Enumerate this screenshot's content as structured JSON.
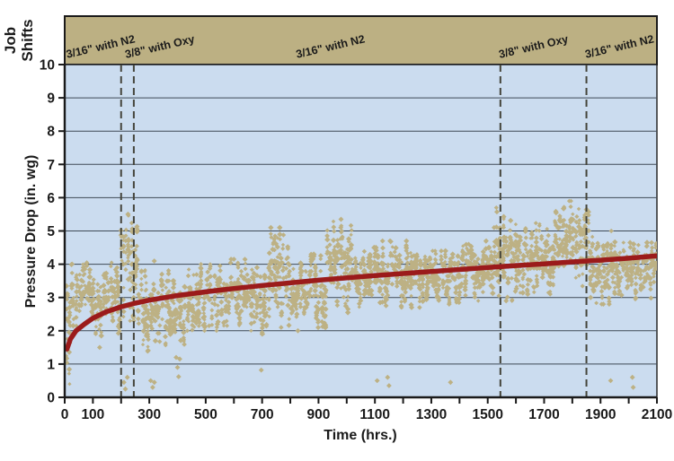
{
  "figure": {
    "band_title": "Job Shifts",
    "xlabel": "Time (hrs.)",
    "ylabel": "Pressure Drop (in. wg)"
  },
  "colors": {
    "background": "#FFFFFF",
    "band_fill": "#BCB083",
    "plot_fill": "#CBDCEF",
    "scatter": "#BDB184",
    "trend": "#9B1B1B",
    "grid": "#3F4A56",
    "axis": "#1A1A1A",
    "dashed_line": "#45453B",
    "text": "#1A1A1A"
  },
  "chart_data": {
    "type": "scatter",
    "title": "",
    "xlabel": "Time (hrs.)",
    "ylabel": "Pressure Drop (in. wg)",
    "xlim": [
      0,
      2100
    ],
    "ylim": [
      0,
      10
    ],
    "x_tick_step": 100,
    "x_labeled_ticks": [
      0,
      100,
      300,
      500,
      700,
      900,
      1100,
      1300,
      1500,
      1700,
      1900,
      2100
    ],
    "y_ticks": [
      0,
      1,
      2,
      3,
      4,
      5,
      6,
      7,
      8,
      9,
      10
    ],
    "grid": "horizontal-only",
    "legend": "none",
    "job_shifts": {
      "title": "Job Shifts",
      "boundaries_hrs": [
        200,
        245,
        1545,
        1850
      ],
      "labels": [
        {
          "text": "3/16\" with N2",
          "anchor_hrs": 130
        },
        {
          "text": "3/8\" with Oxy",
          "anchor_hrs": 340
        },
        {
          "text": "3/16\" with N2",
          "anchor_hrs": 945
        },
        {
          "text": "3/8\" with Oxy",
          "anchor_hrs": 1665
        },
        {
          "text": "3/16\" with N2",
          "anchor_hrs": 1970
        }
      ],
      "label_rotation_deg": -13
    },
    "series": [
      {
        "name": "pressure-drop-measurements",
        "type": "scatter-cloud",
        "marker": "diamond",
        "cloud_segments": [
          {
            "x0": 2,
            "x1": 18,
            "mid": 2.3,
            "half": 1.9
          },
          {
            "x0": 15,
            "x1": 100,
            "mid": 3.1,
            "half": 0.95
          },
          {
            "x0": 100,
            "x1": 200,
            "mid": 2.95,
            "half": 1.1
          },
          {
            "x0": 200,
            "x1": 260,
            "mid": 3.9,
            "half": 1.6
          },
          {
            "x0": 260,
            "x1": 320,
            "mid": 2.8,
            "half": 1.5
          },
          {
            "x0": 320,
            "x1": 430,
            "mid": 2.7,
            "half": 1.2
          },
          {
            "x0": 430,
            "x1": 540,
            "mid": 3.0,
            "half": 1.0
          },
          {
            "x0": 540,
            "x1": 650,
            "mid": 3.15,
            "half": 1.0
          },
          {
            "x0": 650,
            "x1": 720,
            "mid": 2.9,
            "half": 1.0
          },
          {
            "x0": 720,
            "x1": 800,
            "mid": 3.6,
            "half": 1.5
          },
          {
            "x0": 800,
            "x1": 930,
            "mid": 3.2,
            "half": 1.1
          },
          {
            "x0": 930,
            "x1": 1020,
            "mid": 3.95,
            "half": 1.4
          },
          {
            "x0": 1020,
            "x1": 1120,
            "mid": 3.6,
            "half": 0.9
          },
          {
            "x0": 1120,
            "x1": 1260,
            "mid": 3.7,
            "half": 1.0
          },
          {
            "x0": 1260,
            "x1": 1410,
            "mid": 3.6,
            "half": 0.8
          },
          {
            "x0": 1410,
            "x1": 1510,
            "mid": 3.8,
            "half": 0.9
          },
          {
            "x0": 1510,
            "x1": 1620,
            "mid": 4.3,
            "half": 1.4
          },
          {
            "x0": 1620,
            "x1": 1740,
            "mid": 4.2,
            "half": 1.1
          },
          {
            "x0": 1740,
            "x1": 1860,
            "mid": 4.6,
            "half": 1.3
          },
          {
            "x0": 1860,
            "x1": 1980,
            "mid": 3.9,
            "half": 1.1
          },
          {
            "x0": 1980,
            "x1": 2100,
            "mid": 3.8,
            "half": 0.85
          }
        ],
        "outliers": [
          [
            124,
            1.5
          ],
          [
            210,
            0.45
          ],
          [
            215,
            0.25
          ],
          [
            222,
            0.6
          ],
          [
            305,
            0.5
          ],
          [
            312,
            0.3
          ],
          [
            318,
            0.45
          ],
          [
            395,
            1.2
          ],
          [
            400,
            0.9
          ],
          [
            404,
            0.62
          ],
          [
            408,
            1.15
          ],
          [
            697,
            0.82
          ],
          [
            827,
            2.0
          ],
          [
            1108,
            0.5
          ],
          [
            1145,
            0.6
          ],
          [
            1150,
            0.35
          ],
          [
            1368,
            0.45
          ],
          [
            1910,
            2.8
          ],
          [
            1936,
            0.5
          ],
          [
            2013,
            0.6
          ],
          [
            2016,
            0.3
          ]
        ]
      },
      {
        "name": "trend-line-log-fit",
        "type": "line",
        "points": [
          [
            8,
            1.45
          ],
          [
            20,
            1.75
          ],
          [
            40,
            2.0
          ],
          [
            70,
            2.2
          ],
          [
            100,
            2.38
          ],
          [
            150,
            2.58
          ],
          [
            200,
            2.72
          ],
          [
            250,
            2.83
          ],
          [
            300,
            2.92
          ],
          [
            400,
            3.06
          ],
          [
            500,
            3.17
          ],
          [
            600,
            3.27
          ],
          [
            700,
            3.36
          ],
          [
            800,
            3.44
          ],
          [
            900,
            3.52
          ],
          [
            1000,
            3.59
          ],
          [
            1100,
            3.66
          ],
          [
            1200,
            3.72
          ],
          [
            1300,
            3.78
          ],
          [
            1400,
            3.84
          ],
          [
            1500,
            3.9
          ],
          [
            1600,
            3.96
          ],
          [
            1700,
            4.01
          ],
          [
            1800,
            4.07
          ],
          [
            1900,
            4.12
          ],
          [
            2000,
            4.18
          ],
          [
            2100,
            4.25
          ]
        ]
      }
    ]
  }
}
